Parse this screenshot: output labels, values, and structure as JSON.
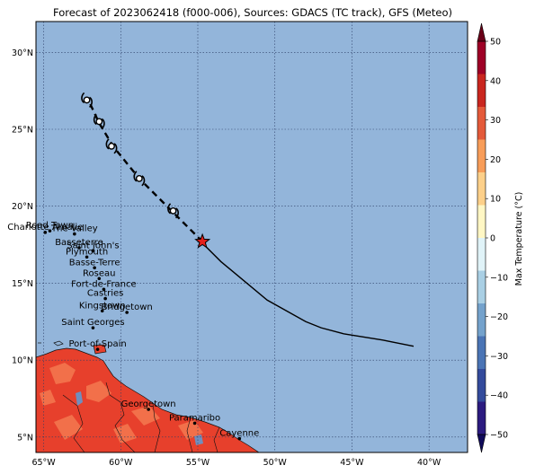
{
  "title": "Forecast of 2023062418 (f000-006), Sources: GDACS (TC track), GFS (Meteo)",
  "colorbar": {
    "label": "Max Temperature (°C)",
    "ticks": [
      "50",
      "40",
      "30",
      "20",
      "10",
      "0",
      "−10",
      "−20",
      "−30",
      "−40",
      "−50"
    ],
    "tick_values": [
      50,
      40,
      30,
      20,
      10,
      0,
      -10,
      -20,
      -30,
      -40,
      -50
    ],
    "colors": [
      "#2b1b7f",
      "#334b9c",
      "#4a74b5",
      "#74a2cc",
      "#a9cfe4",
      "#e0f3f8",
      "#fff7c4",
      "#fdd08a",
      "#f89d59",
      "#e45a3a",
      "#c9261f",
      "#9e0126"
    ]
  },
  "axes": {
    "x_ticks": [
      {
        "value": -65,
        "label": "65°W"
      },
      {
        "value": -60,
        "label": "60°W"
      },
      {
        "value": -55,
        "label": "55°W"
      },
      {
        "value": -50,
        "label": "50°W"
      },
      {
        "value": -45,
        "label": "45°W"
      },
      {
        "value": -40,
        "label": "40°W"
      }
    ],
    "y_ticks": [
      {
        "value": 30,
        "label": "30°N"
      },
      {
        "value": 25,
        "label": "25°N"
      },
      {
        "value": 20,
        "label": "20°N"
      },
      {
        "value": 15,
        "label": "15°N"
      },
      {
        "value": 10,
        "label": "10°N"
      },
      {
        "value": 5,
        "label": "5°N"
      }
    ],
    "lon_range": [
      -65.5,
      -37.5
    ],
    "lat_range": [
      4.0,
      32.0
    ]
  },
  "cities": [
    {
      "name": "Road Town",
      "lon": -64.6,
      "lat": 18.4
    },
    {
      "name": "Charlotte Amalie",
      "lon": -64.9,
      "lat": 18.3
    },
    {
      "name": "The Valley",
      "lon": -63.0,
      "lat": 18.2
    },
    {
      "name": "Basseterre",
      "lon": -62.7,
      "lat": 17.3
    },
    {
      "name": "Saint John's",
      "lon": -61.8,
      "lat": 17.1
    },
    {
      "name": "Plymouth",
      "lon": -62.2,
      "lat": 16.7
    },
    {
      "name": "Basse-Terre",
      "lon": -61.7,
      "lat": 16.0
    },
    {
      "name": "Roseau",
      "lon": -61.4,
      "lat": 15.3
    },
    {
      "name": "Fort-de-France",
      "lon": -61.1,
      "lat": 14.6
    },
    {
      "name": "Castries",
      "lon": -61.0,
      "lat": 14.0
    },
    {
      "name": "Kingstown",
      "lon": -61.2,
      "lat": 13.2
    },
    {
      "name": "Bridgetown",
      "lon": -59.6,
      "lat": 13.1
    },
    {
      "name": "Saint Georges",
      "lon": -61.8,
      "lat": 12.1
    },
    {
      "name": "Port-of-Spain",
      "lon": -61.5,
      "lat": 10.7
    },
    {
      "name": "Georgetown",
      "lon": -58.2,
      "lat": 6.8
    },
    {
      "name": "Paramaribo",
      "lon": -55.2,
      "lat": 5.9
    },
    {
      "name": "Cayenne",
      "lon": -52.3,
      "lat": 4.9
    }
  ],
  "track_past": [
    [
      -41.0,
      10.9
    ],
    [
      -43.0,
      11.3
    ],
    [
      -45.5,
      11.7
    ],
    [
      -47.0,
      12.1
    ],
    [
      -48.0,
      12.5
    ],
    [
      -50.5,
      13.9
    ],
    [
      -52.3,
      15.4
    ],
    [
      -53.5,
      16.4
    ],
    [
      -54.7,
      17.6
    ]
  ],
  "current_position": {
    "lon": -54.7,
    "lat": 17.7
  },
  "track_forecast": [
    [
      -54.7,
      17.7
    ],
    [
      -56.7,
      19.7
    ],
    [
      -58.8,
      21.8
    ],
    [
      -60.5,
      23.9
    ],
    [
      -61.4,
      25.4
    ],
    [
      -62.1,
      26.9
    ]
  ],
  "cyclone_markers": [
    [
      -56.6,
      19.7
    ],
    [
      -58.8,
      21.8
    ],
    [
      -60.6,
      23.9
    ],
    [
      -61.4,
      25.5
    ],
    [
      -62.2,
      26.9
    ]
  ],
  "colors": {
    "ocean": "#93b5da",
    "track": "#000000",
    "star": "#e5201c",
    "land_hot": "#e7402c",
    "land_warm": "#f2704a"
  }
}
